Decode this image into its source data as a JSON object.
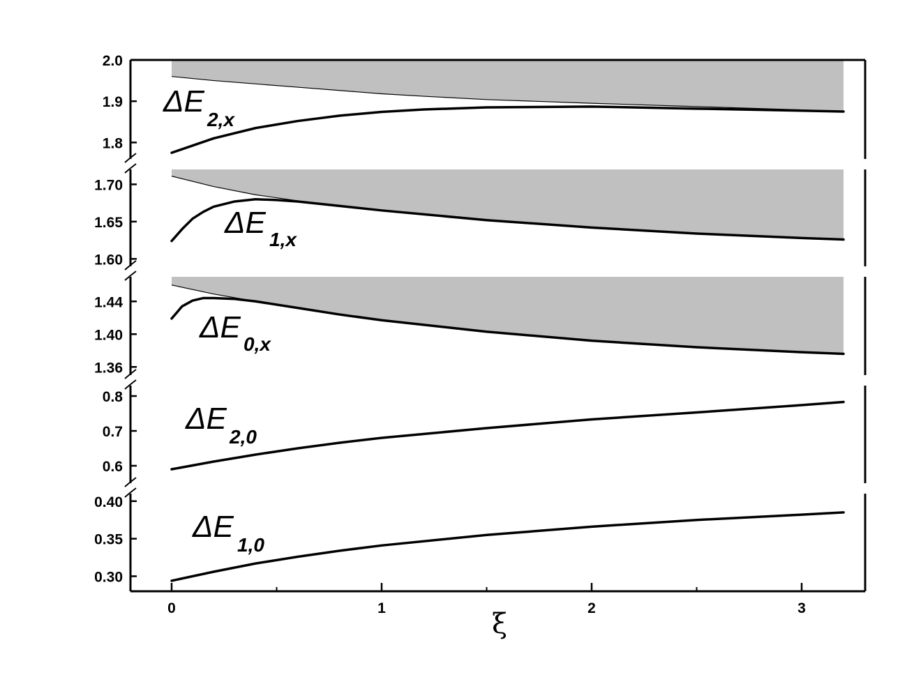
{
  "chart_data": {
    "type": "line",
    "xlabel": "ξ",
    "xlim": [
      0,
      3.2
    ],
    "x_ticks": [
      "0",
      "1",
      "2",
      "3"
    ],
    "x_tick_values": [
      0,
      1,
      2,
      3
    ],
    "grid": false,
    "axis_breaks": true,
    "panels": [
      {
        "id": "p2x",
        "ylim": [
          1.76,
          2.0
        ],
        "y_ticks": [
          "1.8",
          "1.9",
          "2.0"
        ],
        "y_tick_values": [
          1.8,
          1.9,
          2.0
        ],
        "series": [
          {
            "label_main": "ΔE",
            "label_sub": "2,x",
            "x": [
              0,
              0.2,
              0.4,
              0.6,
              0.8,
              1.0,
              1.2,
              1.5,
              2.0,
              2.5,
              3.0,
              3.2
            ],
            "y": [
              1.775,
              1.81,
              1.835,
              1.852,
              1.865,
              1.874,
              1.88,
              1.885,
              1.887,
              1.882,
              1.877,
              1.875
            ]
          }
        ],
        "continuum": {
          "color": "#c0c0c0",
          "x": [
            0,
            0.2,
            0.4,
            0.6,
            0.8,
            1.0,
            1.2,
            1.5,
            2.0,
            2.5,
            3.0,
            3.2
          ],
          "y_lower": [
            1.96,
            1.95,
            1.942,
            1.934,
            1.926,
            1.918,
            1.912,
            1.904,
            1.895,
            1.887,
            1.879,
            1.875
          ]
        }
      },
      {
        "id": "p1x",
        "ylim": [
          1.59,
          1.72
        ],
        "y_ticks": [
          "1.60",
          "1.65",
          "1.70"
        ],
        "y_tick_values": [
          1.6,
          1.65,
          1.7
        ],
        "series": [
          {
            "label_main": "ΔE",
            "label_sub": "1,x",
            "x": [
              0,
              0.05,
              0.1,
              0.15,
              0.2,
              0.3,
              0.4,
              0.5,
              0.6,
              0.8,
              1.0,
              1.5,
              2.0,
              2.5,
              3.0,
              3.2
            ],
            "y": [
              1.624,
              1.64,
              1.654,
              1.663,
              1.67,
              1.677,
              1.68,
              1.679,
              1.677,
              1.671,
              1.665,
              1.652,
              1.642,
              1.634,
              1.628,
              1.626
            ]
          }
        ],
        "continuum": {
          "color": "#c0c0c0",
          "x": [
            0,
            0.2,
            0.4,
            0.6,
            0.8,
            1.0,
            1.5,
            2.0,
            2.5,
            3.0,
            3.2
          ],
          "y_lower": [
            1.711,
            1.697,
            1.686,
            1.678,
            1.671,
            1.665,
            1.652,
            1.642,
            1.634,
            1.628,
            1.626
          ]
        }
      },
      {
        "id": "p0x",
        "ylim": [
          1.35,
          1.47
        ],
        "y_ticks": [
          "1.36",
          "1.40",
          "1.44"
        ],
        "y_tick_values": [
          1.36,
          1.4,
          1.44
        ],
        "series": [
          {
            "label_main": "ΔE",
            "label_sub": "0,x",
            "x": [
              0,
              0.05,
              0.1,
              0.15,
              0.2,
              0.3,
              0.4,
              0.6,
              0.8,
              1.0,
              1.5,
              2.0,
              2.5,
              3.0,
              3.2
            ],
            "y": [
              1.419,
              1.434,
              1.441,
              1.444,
              1.444,
              1.443,
              1.44,
              1.432,
              1.424,
              1.417,
              1.403,
              1.392,
              1.384,
              1.378,
              1.376
            ]
          }
        ],
        "continuum": {
          "color": "#c0c0c0",
          "x": [
            0,
            0.2,
            0.4,
            0.6,
            0.8,
            1.0,
            1.5,
            2.0,
            2.5,
            3.0,
            3.2
          ],
          "y_lower": [
            1.46,
            1.449,
            1.44,
            1.432,
            1.424,
            1.417,
            1.403,
            1.392,
            1.384,
            1.378,
            1.376
          ]
        }
      },
      {
        "id": "p20",
        "ylim": [
          0.55,
          0.83
        ],
        "y_ticks": [
          "0.6",
          "0.7",
          "0.8"
        ],
        "y_tick_values": [
          0.6,
          0.7,
          0.8
        ],
        "series": [
          {
            "label_main": "ΔE",
            "label_sub": "2,0",
            "x": [
              0,
              0.2,
              0.4,
              0.6,
              0.8,
              1.0,
              1.5,
              2.0,
              2.5,
              3.0,
              3.2
            ],
            "y": [
              0.59,
              0.612,
              0.632,
              0.65,
              0.666,
              0.68,
              0.708,
              0.733,
              0.753,
              0.774,
              0.783
            ]
          }
        ]
      },
      {
        "id": "p10",
        "ylim": [
          0.28,
          0.41
        ],
        "y_ticks": [
          "0.30",
          "0.35",
          "0.40"
        ],
        "y_tick_values": [
          0.3,
          0.35,
          0.4
        ],
        "series": [
          {
            "label_main": "ΔE",
            "label_sub": "1,0",
            "x": [
              0,
              0.2,
              0.4,
              0.6,
              0.8,
              1.0,
              1.5,
              2.0,
              2.5,
              3.0,
              3.2
            ],
            "y": [
              0.294,
              0.306,
              0.317,
              0.326,
              0.334,
              0.341,
              0.355,
              0.366,
              0.375,
              0.382,
              0.385
            ]
          }
        ]
      }
    ]
  }
}
